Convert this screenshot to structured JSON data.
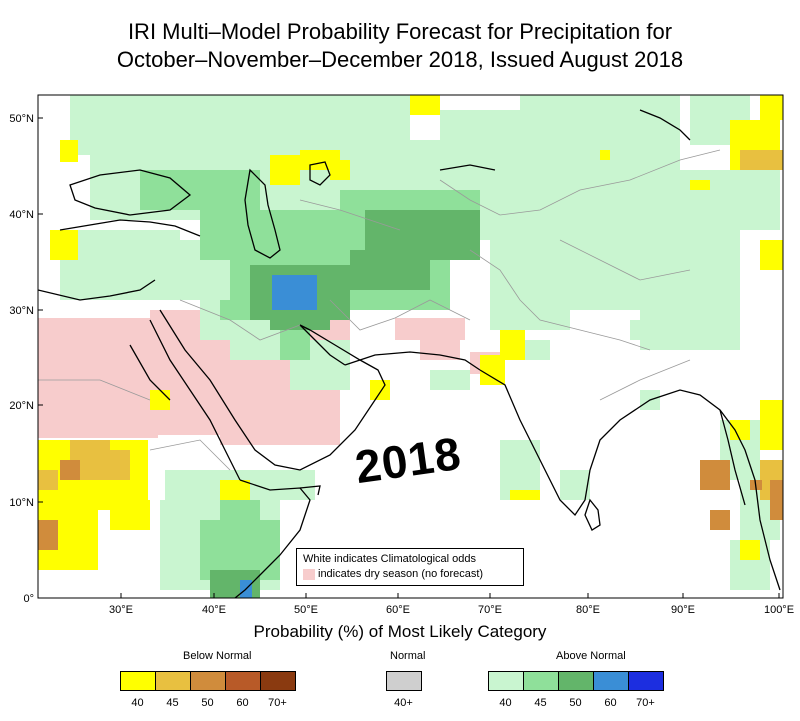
{
  "title": {
    "line1": "IRI Multi–Model Probability Forecast for Precipitation for",
    "line2": "October–November–December 2018, Issued August 2018"
  },
  "map": {
    "lon_labels": [
      "30°E",
      "40°E",
      "50°E",
      "60°E",
      "70°E",
      "80°E",
      "90°E",
      "100°E"
    ],
    "lat_labels": [
      "50°N",
      "40°N",
      "30°N",
      "20°N",
      "10°N",
      "0°"
    ],
    "stamp": "2018",
    "note_line1": "White indicates Climatological odds",
    "note_line2": "indicates dry season (no forecast)"
  },
  "xlabel": "Probability (%) of Most Likely Category",
  "legend": {
    "below": {
      "heading": "Below Normal",
      "ticks": [
        "40",
        "45",
        "50",
        "60",
        "70+"
      ],
      "colors": [
        "#ffff00",
        "#e8c040",
        "#d08c3c",
        "#b85a28",
        "#8a3a10"
      ]
    },
    "normal": {
      "heading": "Normal",
      "ticks": [
        "40+"
      ],
      "colors": [
        "#cfcfcf"
      ]
    },
    "above": {
      "heading": "Above Normal",
      "ticks": [
        "40",
        "45",
        "50",
        "60",
        "70+"
      ],
      "colors": [
        "#c9f5d0",
        "#8fe09a",
        "#63b56a",
        "#3a8ed6",
        "#1c2ee0"
      ]
    }
  },
  "colors": {
    "dry_season": "#f7cccc",
    "map_frame": "#000000",
    "coastline": "#000000",
    "border": "#9a9a9a"
  }
}
